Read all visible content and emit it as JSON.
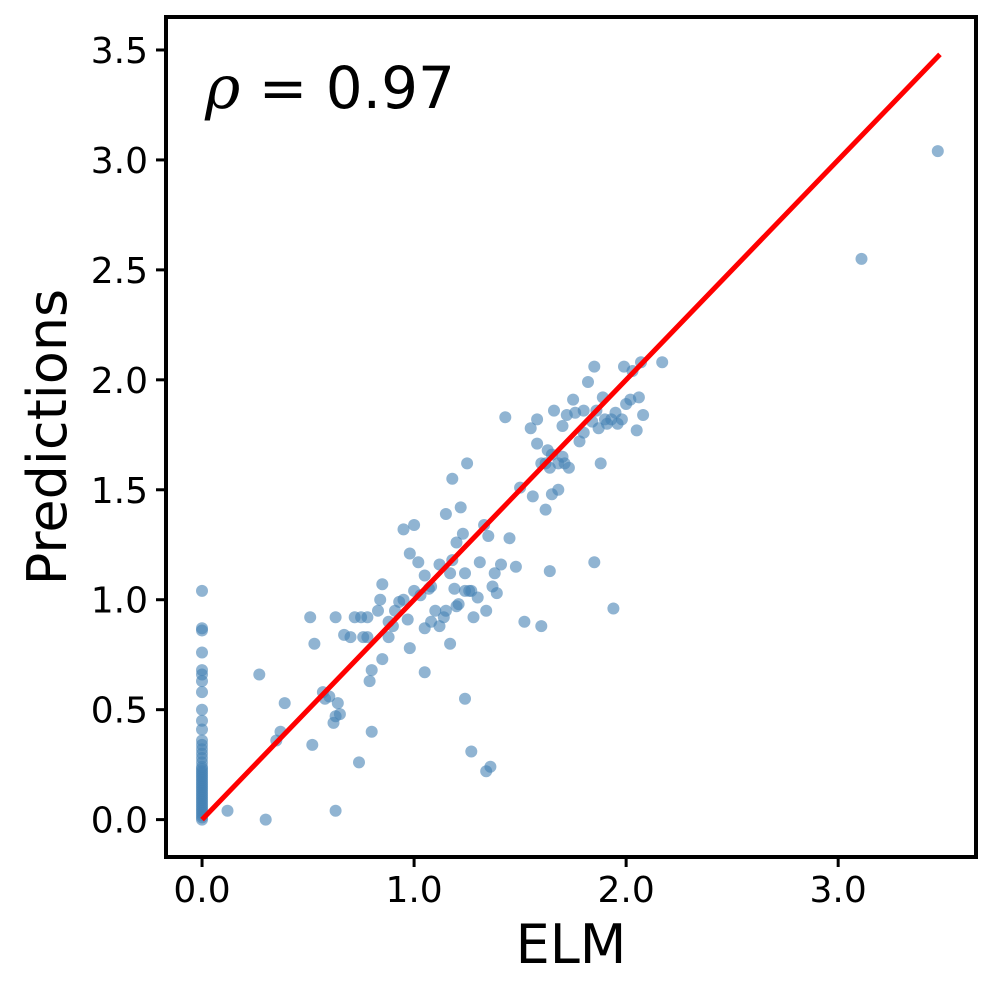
{
  "chart_data": {
    "type": "scatter",
    "title": "",
    "xlabel": "ELM",
    "ylabel": "Predictions",
    "xlim": [
      -0.17,
      3.65
    ],
    "ylim": [
      -0.17,
      3.65
    ],
    "xticks": [
      0.0,
      1.0,
      2.0,
      3.0
    ],
    "xtick_labels": [
      "0.0",
      "1.0",
      "2.0",
      "3.0"
    ],
    "yticks": [
      0.0,
      0.5,
      1.0,
      1.5,
      2.0,
      2.5,
      3.0,
      3.5
    ],
    "ytick_labels": [
      "0.0",
      "0.5",
      "1.0",
      "1.5",
      "2.0",
      "2.5",
      "3.0",
      "3.5"
    ],
    "grid": false,
    "annotation": {
      "symbol": "ρ",
      "text": " = 0.97"
    },
    "point_color": "#4682b4",
    "line_color": "#ff0000",
    "fit_line": {
      "x": [
        0.0,
        3.48
      ],
      "y": [
        0.0,
        3.48
      ]
    },
    "points": [
      [
        0,
        0
      ],
      [
        0,
        0.01
      ],
      [
        0,
        0.02
      ],
      [
        0,
        0.03
      ],
      [
        0,
        0.04
      ],
      [
        0,
        0.05
      ],
      [
        0,
        0.06
      ],
      [
        0,
        0.07
      ],
      [
        0,
        0.08
      ],
      [
        0,
        0.09
      ],
      [
        0,
        0.1
      ],
      [
        0,
        0.11
      ],
      [
        0,
        0.12
      ],
      [
        0,
        0.13
      ],
      [
        0,
        0.14
      ],
      [
        0,
        0.15
      ],
      [
        0,
        0.16
      ],
      [
        0,
        0.17
      ],
      [
        0,
        0.18
      ],
      [
        0,
        0.19
      ],
      [
        0,
        0.2
      ],
      [
        0,
        0.21
      ],
      [
        0,
        0.22
      ],
      [
        0,
        0.23
      ],
      [
        0,
        0.24
      ],
      [
        0,
        0.26
      ],
      [
        0,
        0.28
      ],
      [
        0,
        0.3
      ],
      [
        0,
        0.32
      ],
      [
        0,
        0.34
      ],
      [
        0,
        0.36
      ],
      [
        0,
        0.41
      ],
      [
        0,
        0.45
      ],
      [
        0,
        0.5
      ],
      [
        0,
        0.58
      ],
      [
        0,
        0.63
      ],
      [
        0,
        0.66
      ],
      [
        0,
        0.68
      ],
      [
        0,
        0.76
      ],
      [
        0,
        0.86
      ],
      [
        0,
        0.87
      ],
      [
        0,
        1.04
      ],
      [
        0.12,
        0.04
      ],
      [
        0.27,
        0.66
      ],
      [
        0.3,
        0.0
      ],
      [
        0.35,
        0.36
      ],
      [
        0.37,
        0.4
      ],
      [
        0.39,
        0.53
      ],
      [
        0.51,
        0.92
      ],
      [
        0.52,
        0.34
      ],
      [
        0.53,
        0.8
      ],
      [
        0.57,
        0.58
      ],
      [
        0.58,
        0.55
      ],
      [
        0.6,
        0.56
      ],
      [
        0.62,
        0.44
      ],
      [
        0.63,
        0.47
      ],
      [
        0.63,
        0.92
      ],
      [
        0.63,
        0.04
      ],
      [
        0.64,
        0.53
      ],
      [
        0.65,
        0.48
      ],
      [
        0.67,
        0.84
      ],
      [
        0.7,
        0.83
      ],
      [
        0.72,
        0.92
      ],
      [
        0.74,
        0.26
      ],
      [
        0.75,
        0.92
      ],
      [
        0.76,
        0.83
      ],
      [
        0.78,
        0.83
      ],
      [
        0.78,
        0.92
      ],
      [
        0.79,
        0.63
      ],
      [
        0.8,
        0.4
      ],
      [
        0.8,
        0.68
      ],
      [
        0.83,
        0.95
      ],
      [
        0.84,
        1.0
      ],
      [
        0.85,
        1.07
      ],
      [
        0.85,
        0.73
      ],
      [
        0.88,
        0.83
      ],
      [
        0.88,
        0.9
      ],
      [
        0.9,
        0.88
      ],
      [
        0.91,
        0.95
      ],
      [
        0.93,
        0.99
      ],
      [
        0.95,
        1.0
      ],
      [
        0.95,
        1.32
      ],
      [
        0.97,
        0.91
      ],
      [
        0.98,
        1.21
      ],
      [
        0.98,
        0.78
      ],
      [
        1.0,
        1.04
      ],
      [
        1.0,
        1.34
      ],
      [
        1.02,
        1.17
      ],
      [
        1.03,
        1.02
      ],
      [
        1.05,
        0.87
      ],
      [
        1.05,
        0.67
      ],
      [
        1.05,
        1.11
      ],
      [
        1.07,
        1.05
      ],
      [
        1.08,
        0.9
      ],
      [
        1.08,
        1.06
      ],
      [
        1.1,
        0.95
      ],
      [
        1.12,
        1.16
      ],
      [
        1.12,
        0.88
      ],
      [
        1.14,
        0.92
      ],
      [
        1.15,
        0.95
      ],
      [
        1.15,
        1.39
      ],
      [
        1.17,
        0.8
      ],
      [
        1.17,
        1.12
      ],
      [
        1.18,
        1.18
      ],
      [
        1.18,
        1.55
      ],
      [
        1.19,
        1.05
      ],
      [
        1.2,
        0.97
      ],
      [
        1.2,
        1.26
      ],
      [
        1.21,
        0.98
      ],
      [
        1.22,
        1.42
      ],
      [
        1.23,
        1.3
      ],
      [
        1.24,
        1.12
      ],
      [
        1.24,
        1.04
      ],
      [
        1.24,
        0.55
      ],
      [
        1.25,
        1.62
      ],
      [
        1.26,
        1.04
      ],
      [
        1.27,
        1.04
      ],
      [
        1.27,
        0.31
      ],
      [
        1.28,
        0.92
      ],
      [
        1.3,
        1.01
      ],
      [
        1.31,
        1.17
      ],
      [
        1.33,
        1.34
      ],
      [
        1.34,
        0.95
      ],
      [
        1.34,
        0.22
      ],
      [
        1.35,
        1.29
      ],
      [
        1.36,
        0.24
      ],
      [
        1.37,
        1.06
      ],
      [
        1.38,
        1.12
      ],
      [
        1.39,
        1.03
      ],
      [
        1.41,
        1.16
      ],
      [
        1.43,
        1.83
      ],
      [
        1.45,
        1.28
      ],
      [
        1.48,
        1.15
      ],
      [
        1.5,
        1.51
      ],
      [
        1.52,
        0.9
      ],
      [
        1.55,
        1.78
      ],
      [
        1.56,
        1.47
      ],
      [
        1.58,
        1.71
      ],
      [
        1.58,
        1.82
      ],
      [
        1.6,
        0.88
      ],
      [
        1.6,
        1.62
      ],
      [
        1.62,
        1.41
      ],
      [
        1.62,
        1.62
      ],
      [
        1.63,
        1.68
      ],
      [
        1.64,
        1.13
      ],
      [
        1.64,
        1.6
      ],
      [
        1.65,
        1.66
      ],
      [
        1.65,
        1.48
      ],
      [
        1.66,
        1.86
      ],
      [
        1.68,
        1.5
      ],
      [
        1.68,
        1.62
      ],
      [
        1.7,
        1.79
      ],
      [
        1.7,
        1.65
      ],
      [
        1.71,
        1.62
      ],
      [
        1.72,
        1.84
      ],
      [
        1.73,
        1.6
      ],
      [
        1.75,
        1.91
      ],
      [
        1.76,
        1.85
      ],
      [
        1.78,
        1.72
      ],
      [
        1.8,
        1.76
      ],
      [
        1.8,
        1.86
      ],
      [
        1.82,
        1.99
      ],
      [
        1.84,
        1.81
      ],
      [
        1.85,
        1.17
      ],
      [
        1.85,
        2.06
      ],
      [
        1.86,
        1.86
      ],
      [
        1.87,
        1.78
      ],
      [
        1.88,
        1.62
      ],
      [
        1.89,
        1.92
      ],
      [
        1.9,
        1.82
      ],
      [
        1.91,
        1.8
      ],
      [
        1.93,
        1.82
      ],
      [
        1.94,
        0.96
      ],
      [
        1.95,
        1.85
      ],
      [
        1.96,
        1.8
      ],
      [
        1.98,
        1.82
      ],
      [
        1.99,
        2.06
      ],
      [
        2.0,
        1.89
      ],
      [
        2.02,
        1.91
      ],
      [
        2.03,
        2.04
      ],
      [
        2.05,
        1.77
      ],
      [
        2.06,
        1.92
      ],
      [
        2.07,
        2.08
      ],
      [
        2.08,
        1.84
      ],
      [
        2.17,
        2.08
      ],
      [
        3.11,
        2.55
      ],
      [
        3.47,
        3.04
      ]
    ]
  }
}
